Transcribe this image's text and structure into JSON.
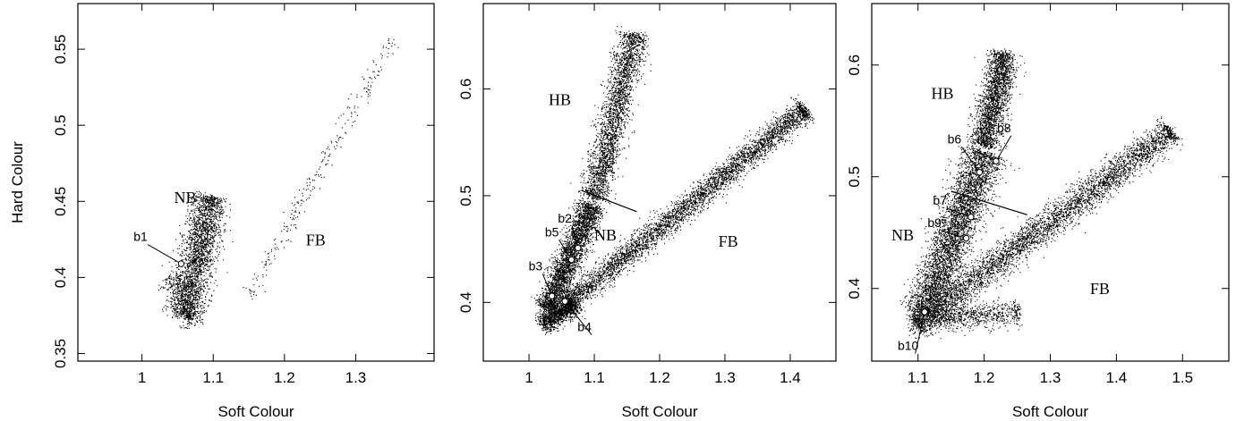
{
  "chart_data": [
    {
      "type": "scatter",
      "xlabel": "Soft Colour",
      "ylabel": "Hard Colour",
      "xlim": [
        0.91,
        1.41
      ],
      "ylim": [
        0.345,
        0.58
      ],
      "xticks": [
        "1",
        "1.1",
        "1.2",
        "1.3"
      ],
      "xtick_values": [
        1.0,
        1.1,
        1.2,
        1.3
      ],
      "yticks": [
        "0.35",
        "0.4",
        "0.45",
        "0.5",
        "0.55"
      ],
      "ytick_values": [
        0.35,
        0.4,
        0.45,
        0.5,
        0.55
      ],
      "branch_labels": [
        {
          "text": "NB",
          "x": 1.045,
          "y": 0.449
        },
        {
          "text": "FB",
          "x": 1.23,
          "y": 0.421
        }
      ],
      "points": [
        {
          "label": "b1",
          "x": 1.055,
          "y": 0.409,
          "label_x": 0.998,
          "label_y": 0.424
        }
      ],
      "clouds": [
        {
          "x0": 1.06,
          "y0": 0.375,
          "x1": 1.095,
          "y1": 0.452,
          "spread": 0.012,
          "n": 2500
        },
        {
          "x0": 1.04,
          "y0": 0.4,
          "x1": 1.07,
          "y1": 0.37,
          "spread": 0.009,
          "n": 300
        },
        {
          "x0": 1.15,
          "y0": 0.39,
          "x1": 1.35,
          "y1": 0.555,
          "spread": 0.006,
          "n": 260
        }
      ]
    },
    {
      "type": "scatter",
      "xlabel": "Soft Colour",
      "ylabel": "",
      "xlim": [
        0.93,
        1.47
      ],
      "ylim": [
        0.345,
        0.68
      ],
      "xticks": [
        "1",
        "1.1",
        "1.2",
        "1.3",
        "1.4"
      ],
      "xtick_values": [
        1.0,
        1.1,
        1.2,
        1.3,
        1.4
      ],
      "yticks": [
        "0.4",
        "0.5",
        "0.6"
      ],
      "ytick_values": [
        0.4,
        0.5,
        0.6
      ],
      "branch_labels": [
        {
          "text": "HB",
          "x": 1.03,
          "y": 0.585
        },
        {
          "text": "NB",
          "x": 1.1,
          "y": 0.458
        },
        {
          "text": "FB",
          "x": 1.29,
          "y": 0.452
        }
      ],
      "divider": {
        "x0": 1.08,
        "y0": 0.505,
        "x1": 1.165,
        "y1": 0.485
      },
      "points": [
        {
          "label": "b2",
          "x": 1.075,
          "y": 0.451,
          "label_x": 1.055,
          "label_y": 0.475
        },
        {
          "label": "b5",
          "x": 1.065,
          "y": 0.44,
          "label_x": 1.035,
          "label_y": 0.462
        },
        {
          "label": "b3",
          "x": 1.035,
          "y": 0.406,
          "label_x": 1.01,
          "label_y": 0.43
        },
        {
          "label": "b4",
          "x": 1.055,
          "y": 0.401,
          "label_x": 1.085,
          "label_y": 0.373
        }
      ],
      "clouds": [
        {
          "x0": 1.03,
          "y0": 0.395,
          "x1": 1.095,
          "y1": 0.49,
          "spread": 0.01,
          "n": 3000
        },
        {
          "x0": 1.1,
          "y0": 0.5,
          "x1": 1.16,
          "y1": 0.65,
          "spread": 0.011,
          "n": 2600
        },
        {
          "x0": 1.06,
          "y0": 0.4,
          "x1": 1.42,
          "y1": 0.58,
          "spread": 0.009,
          "n": 4200
        },
        {
          "x0": 1.02,
          "y0": 0.38,
          "x1": 1.07,
          "y1": 0.4,
          "spread": 0.008,
          "n": 1200
        }
      ]
    },
    {
      "type": "scatter",
      "xlabel": "Soft Colour",
      "ylabel": "",
      "xlim": [
        1.03,
        1.57
      ],
      "ylim": [
        0.335,
        0.655
      ],
      "xticks": [
        "1.1",
        "1.2",
        "1.3",
        "1.4",
        "1.5"
      ],
      "xtick_values": [
        1.1,
        1.2,
        1.3,
        1.4,
        1.5
      ],
      "yticks": [
        "0.4",
        "0.5",
        "0.6"
      ],
      "ytick_values": [
        0.4,
        0.5,
        0.6
      ],
      "branch_labels": [
        {
          "text": "HB",
          "x": 1.12,
          "y": 0.57
        },
        {
          "text": "NB",
          "x": 1.06,
          "y": 0.443
        },
        {
          "text": "FB",
          "x": 1.36,
          "y": 0.395
        }
      ],
      "divider": {
        "x0": 1.15,
        "y0": 0.487,
        "x1": 1.265,
        "y1": 0.466
      },
      "points": [
        {
          "label": "b6",
          "x": 1.193,
          "y": 0.504,
          "label_x": 1.155,
          "label_y": 0.53
        },
        {
          "label": "b8",
          "x": 1.218,
          "y": 0.514,
          "label_x": 1.23,
          "label_y": 0.54
        },
        {
          "label": "b7",
          "x": 1.18,
          "y": 0.464,
          "label_x": 1.133,
          "label_y": 0.475
        },
        {
          "label": "b9",
          "x": 1.173,
          "y": 0.445,
          "label_x": 1.125,
          "label_y": 0.455
        },
        {
          "label": "b10",
          "x": 1.11,
          "y": 0.379,
          "label_x": 1.085,
          "label_y": 0.345
        }
      ],
      "clouds": [
        {
          "x0": 1.11,
          "y0": 0.38,
          "x1": 1.2,
          "y1": 0.52,
          "spread": 0.015,
          "n": 4200
        },
        {
          "x0": 1.2,
          "y0": 0.53,
          "x1": 1.23,
          "y1": 0.61,
          "spread": 0.011,
          "n": 2200
        },
        {
          "x0": 1.1,
          "y0": 0.37,
          "x1": 1.48,
          "y1": 0.54,
          "spread": 0.011,
          "n": 4200
        },
        {
          "x0": 1.09,
          "y0": 0.37,
          "x1": 1.25,
          "y1": 0.38,
          "spread": 0.01,
          "n": 900
        }
      ]
    }
  ]
}
